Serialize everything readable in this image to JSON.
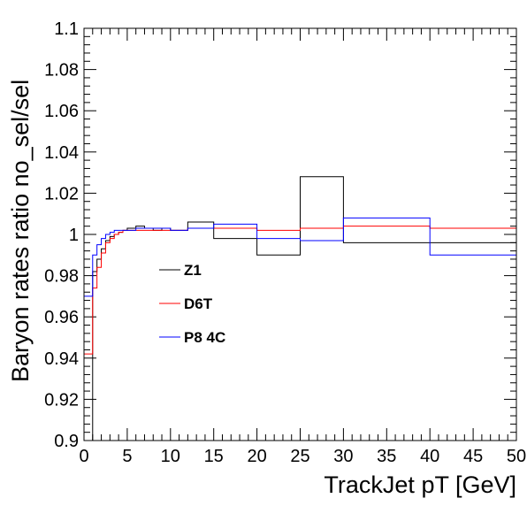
{
  "chart_data": {
    "type": "line",
    "xlabel": "TrackJet pT [GeV]",
    "ylabel": "Baryon rates ratio no_sel/sel",
    "xlim": [
      0,
      50
    ],
    "ylim": [
      0.9,
      1.1
    ],
    "x_ticks": [
      "0",
      "5",
      "10",
      "15",
      "20",
      "25",
      "30",
      "35",
      "40",
      "45",
      "50"
    ],
    "y_ticks": [
      "0.9",
      "0.92",
      "0.94",
      "0.96",
      "0.98",
      "1",
      "1.02",
      "1.04",
      "1.06",
      "1.08",
      "1.1"
    ],
    "legend_position": "middle-left",
    "bin_edges": [
      0,
      1,
      1.5,
      2,
      2.5,
      3,
      3.5,
      4,
      4.5,
      5,
      6,
      7,
      8,
      9,
      10,
      12,
      15,
      20,
      25,
      30,
      40,
      50
    ],
    "series": [
      {
        "name": "Z1",
        "color": "#000000",
        "values": [
          0.9,
          0.982,
          0.988,
          0.993,
          0.997,
          0.999,
          1.0,
          1.001,
          1.002,
          1.003,
          1.004,
          1.003,
          1.002,
          1.003,
          1.002,
          1.006,
          0.998,
          0.99,
          1.028,
          0.996,
          0.996
        ]
      },
      {
        "name": "D6T",
        "color": "#ff0000",
        "values": [
          0.942,
          0.974,
          0.984,
          0.991,
          0.996,
          0.998,
          1.0,
          1.001,
          1.002,
          1.002,
          1.002,
          1.002,
          1.002,
          1.002,
          1.002,
          1.003,
          1.003,
          1.002,
          1.003,
          1.004,
          1.003
        ]
      },
      {
        "name": "P8 4C",
        "color": "#0000ff",
        "values": [
          0.97,
          0.99,
          0.995,
          0.998,
          1.0,
          1.001,
          1.002,
          1.002,
          1.002,
          1.002,
          1.003,
          1.003,
          1.003,
          1.003,
          1.002,
          1.003,
          1.005,
          0.998,
          0.997,
          1.008,
          0.99
        ]
      }
    ]
  }
}
